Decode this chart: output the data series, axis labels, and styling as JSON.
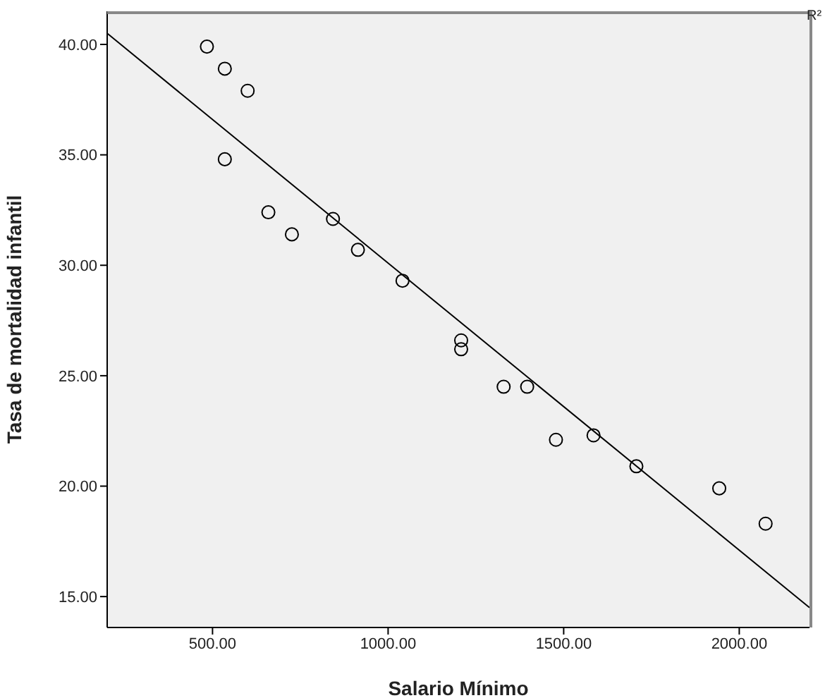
{
  "chart_data": {
    "type": "scatter",
    "xlabel": "Salario Mínimo",
    "ylabel": "Tasa de mortalidad infantil",
    "annotations": [
      "R²"
    ],
    "xlim": [
      200,
      2200
    ],
    "xticks": [
      {
        "value": 500,
        "label": "500.00"
      },
      {
        "value": 1000,
        "label": "1000.00"
      },
      {
        "value": 1500,
        "label": "1500.00"
      },
      {
        "value": 2000,
        "label": "2000.00"
      }
    ],
    "ylim": [
      13.6,
      41.5
    ],
    "yticks": [
      {
        "value": 15,
        "label": "15.00"
      },
      {
        "value": 20,
        "label": "20.00"
      },
      {
        "value": 25,
        "label": "25.00"
      },
      {
        "value": 30,
        "label": "30.00"
      },
      {
        "value": 35,
        "label": "35.00"
      },
      {
        "value": 40,
        "label": "40.00"
      }
    ],
    "series": [
      {
        "type": "scatter",
        "marker": "circle",
        "color": "#000000",
        "x": [
          484,
          535,
          600,
          535,
          659,
          726,
          843,
          914,
          1041,
          1208,
          1208,
          1329,
          1396,
          1478,
          1585,
          1707,
          1943,
          2075
        ],
        "values": [
          39.9,
          38.9,
          37.9,
          34.8,
          32.4,
          31.4,
          32.1,
          30.7,
          29.3,
          26.6,
          26.2,
          24.5,
          24.5,
          22.1,
          22.3,
          20.9,
          19.9,
          18.3
        ]
      },
      {
        "type": "line",
        "marker": "none",
        "color": "#000000",
        "x": [
          200,
          2200
        ],
        "values": [
          40.5,
          14.5
        ]
      }
    ]
  }
}
